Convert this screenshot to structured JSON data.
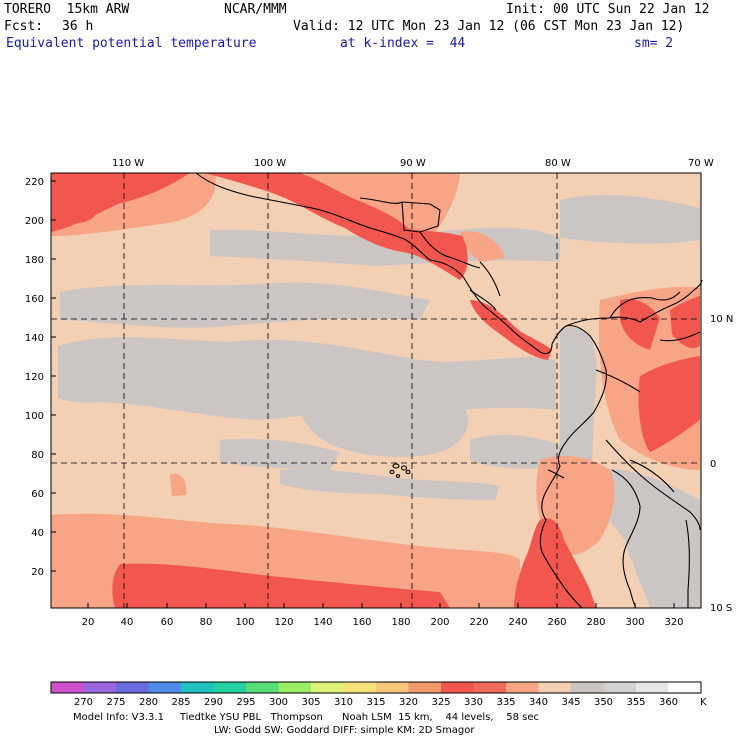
{
  "header": {
    "model": "TORERO  15km ARW",
    "org": "NCAR/MMM",
    "init": "Init: 00 UTC Sun 22 Jan 12",
    "fcst_label": "Fcst:",
    "fcst_value": "36 h",
    "valid": "Valid: 12 UTC Mon 23 Jan 12 (06 CST Mon 23 Jan 12)",
    "field": "Equivalent potential temperature",
    "level": "at k-index =  44",
    "smooth": "sm= 2"
  },
  "map": {
    "top_lon_labels": [
      "110 W",
      "100 W",
      "90 W",
      "80 W",
      "70 W"
    ],
    "right_lat_labels": [
      "10 N",
      "0",
      "10 S"
    ],
    "y_ticks": [
      "220",
      "200",
      "180",
      "160",
      "140",
      "120",
      "100",
      "80",
      "60",
      "40",
      "20"
    ],
    "x_ticks": [
      "20",
      "40",
      "60",
      "80",
      "100",
      "120",
      "140",
      "160",
      "180",
      "200",
      "220",
      "240",
      "260",
      "280",
      "300",
      "320"
    ],
    "colors": {
      "ocean_base": "#f3cfb4",
      "cool": "#cbc6c4",
      "warm": "#f8a487",
      "hot": "#f2574f",
      "coast": "#000000",
      "grid": "#000000"
    }
  },
  "colorbar": {
    "labels": [
      "270",
      "275",
      "280",
      "285",
      "290",
      "295",
      "300",
      "305",
      "310",
      "315",
      "320",
      "325",
      "330",
      "335",
      "340",
      "345",
      "350",
      "355",
      "360"
    ],
    "unit": "K",
    "colors": [
      "#cc4fcc",
      "#9966dd",
      "#6b6be0",
      "#4f8be8",
      "#22c0c0",
      "#22d0a0",
      "#55dd77",
      "#99ee66",
      "#ddf277",
      "#f6e37a",
      "#f8c77c",
      "#f59a6c",
      "#f2574f",
      "#f26a5a",
      "#f8a487",
      "#f3cfb4",
      "#cbc6c4",
      "#d2d2d2",
      "#e6e6e6",
      "#ffffff"
    ]
  },
  "footer": {
    "line1": "Model Info: V3.3.1     Tiedtke YSU PBL   Thompson      Noah LSM  15 km,    44 levels,    58 sec",
    "line2": "LW: Godd SW: Goddard DIFF: simple KM: 2D Smagor"
  }
}
